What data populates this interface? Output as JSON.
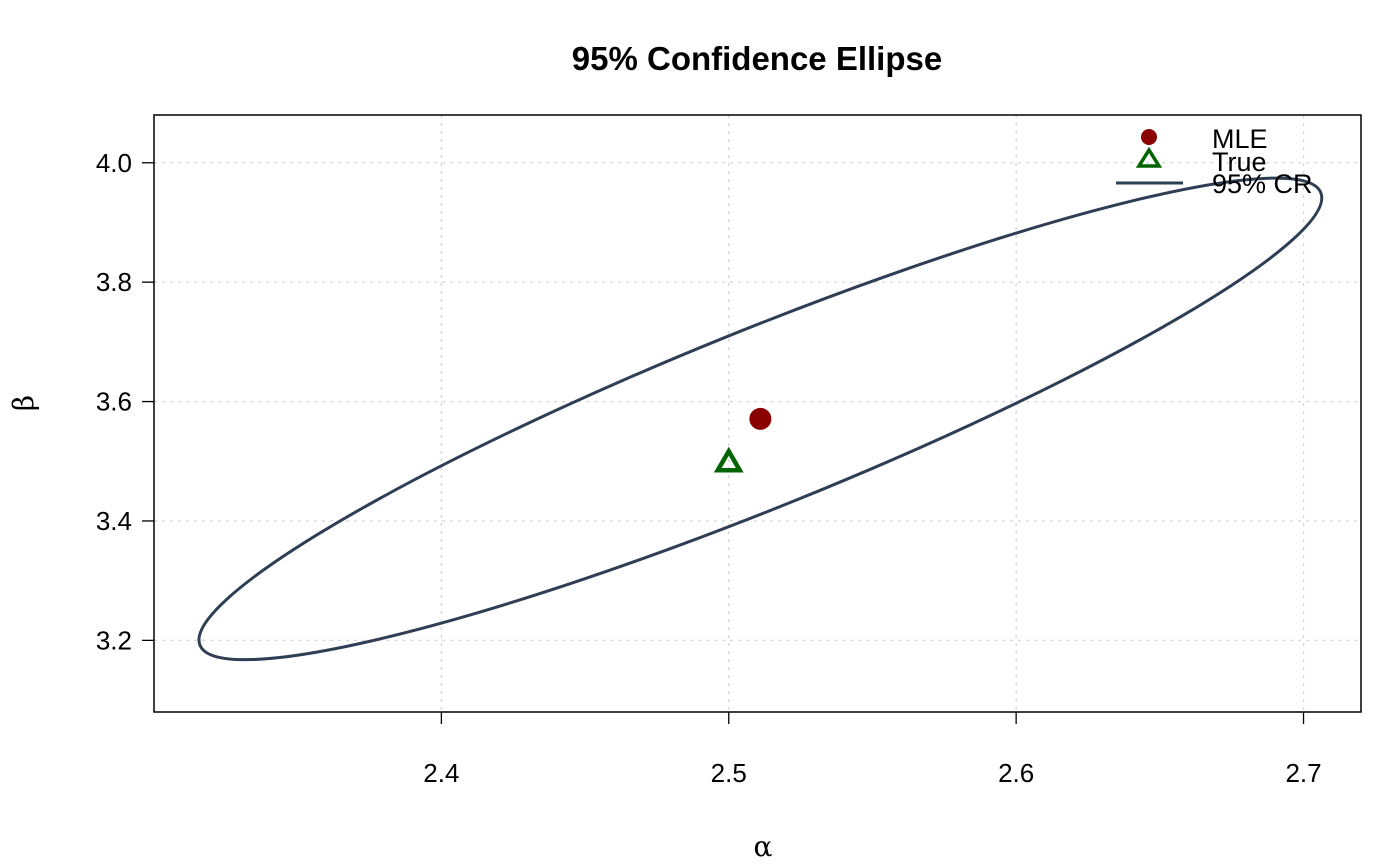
{
  "chart_data": {
    "type": "scatter",
    "title": "95% Confidence Ellipse",
    "xlabel": "α",
    "ylabel": "β",
    "xlim": [
      2.3,
      2.72
    ],
    "ylim": [
      3.08,
      4.08
    ],
    "x_ticks": [
      2.4,
      2.5,
      2.6,
      2.7
    ],
    "y_ticks": [
      3.2,
      3.4,
      3.6,
      3.8,
      4.0
    ],
    "x_tick_labels": [
      "2.4",
      "2.5",
      "2.6",
      "2.7"
    ],
    "y_tick_labels": [
      "3.2",
      "3.4",
      "3.6",
      "3.8",
      "4.0"
    ],
    "grid": true,
    "legend_position": "top-right",
    "series": [
      {
        "name": "MLE",
        "marker": "circle",
        "color": "#8b0000",
        "x": [
          2.511
        ],
        "y": [
          3.571
        ]
      },
      {
        "name": "True",
        "marker": "triangle",
        "color": "#006400",
        "x": [
          2.5
        ],
        "y": [
          3.5
        ]
      },
      {
        "name": "95% CR",
        "marker": "line",
        "color": "#2e3e55",
        "ellipse": {
          "center": [
            2.511,
            3.571
          ],
          "vertices": [
            [
              2.706,
              3.95
            ],
            [
              2.316,
              3.19
            ]
          ],
          "co_vertices": [
            [
              2.49,
              3.68
            ],
            [
              2.532,
              3.462
            ]
          ]
        }
      }
    ]
  }
}
